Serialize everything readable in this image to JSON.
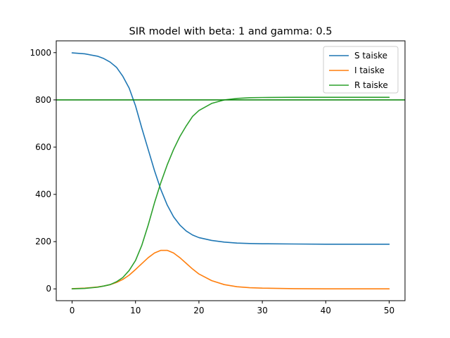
{
  "chart_data": {
    "type": "line",
    "title": "SIR model with beta: 1  and gamma: 0.5",
    "xlabel": "",
    "ylabel": "",
    "xlim": [
      -2.5,
      52.5
    ],
    "ylim": [
      -50,
      1050
    ],
    "xticks": [
      0,
      10,
      20,
      30,
      40,
      50
    ],
    "yticks": [
      0,
      200,
      400,
      600,
      800,
      1000
    ],
    "grid": false,
    "legend_position": "top-right",
    "hline": {
      "y": 800,
      "color": "#008000"
    },
    "series": [
      {
        "name": "S taiske",
        "color": "#1f77b4",
        "x": [
          0,
          2,
          4,
          5,
          6,
          7,
          8,
          9,
          10,
          11,
          12,
          13,
          14,
          15,
          16,
          17,
          18,
          19,
          20,
          22,
          24,
          26,
          28,
          30,
          35,
          40,
          45,
          50
        ],
        "y": [
          999,
          995,
          985,
          975,
          960,
          938,
          900,
          850,
          775,
          680,
          590,
          500,
          420,
          355,
          305,
          270,
          245,
          228,
          217,
          205,
          198,
          194,
          192,
          191,
          190,
          189,
          189,
          189
        ]
      },
      {
        "name": "I taiske",
        "color": "#ff7f0e",
        "x": [
          0,
          2,
          4,
          5,
          6,
          7,
          8,
          9,
          10,
          11,
          12,
          13,
          14,
          15,
          16,
          17,
          18,
          19,
          20,
          22,
          24,
          26,
          28,
          30,
          35,
          40,
          45,
          50
        ],
        "y": [
          1,
          3,
          8,
          12,
          18,
          27,
          40,
          58,
          82,
          107,
          132,
          152,
          163,
          163,
          152,
          132,
          108,
          84,
          63,
          35,
          18,
          9,
          5,
          3,
          1,
          0,
          0,
          0
        ]
      },
      {
        "name": "R taiske",
        "color": "#2ca02c",
        "x": [
          0,
          2,
          4,
          5,
          6,
          7,
          8,
          9,
          10,
          11,
          12,
          13,
          14,
          15,
          16,
          17,
          18,
          19,
          20,
          22,
          24,
          26,
          28,
          30,
          35,
          40,
          45,
          50
        ],
        "y": [
          0,
          2,
          7,
          12,
          18,
          30,
          48,
          78,
          120,
          185,
          270,
          365,
          450,
          525,
          590,
          645,
          690,
          730,
          755,
          785,
          800,
          806,
          809,
          810,
          811,
          811,
          811,
          811
        ]
      }
    ]
  }
}
